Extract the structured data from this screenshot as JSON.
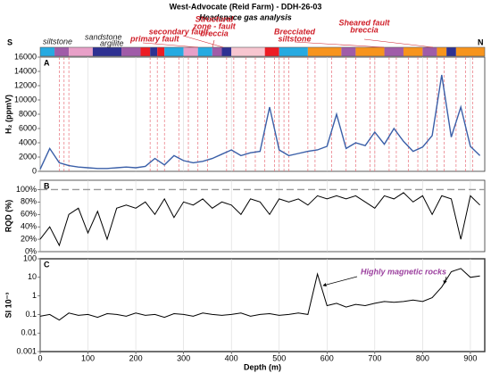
{
  "title": "West-Advocate (Reid Farm) - DDH-26-03",
  "subtitle": "Headspace gas analysis",
  "south_label": "S",
  "north_label": "N",
  "lithology_labels": [
    {
      "lines": [
        "siltstone"
      ],
      "color": "#222222"
    },
    {
      "lines": [
        "sandstone"
      ],
      "color": "#222222"
    },
    {
      "lines": [
        "argilite"
      ],
      "color": "#222222"
    },
    {
      "lines": [
        "primary fault"
      ],
      "color": "#d0202a"
    },
    {
      "lines": [
        "secondary fault"
      ],
      "color": "#d0202a"
    },
    {
      "lines": [
        "Structural",
        "zone - fault",
        "breccia"
      ],
      "color": "#d0202a"
    },
    {
      "lines": [
        "Brecciated",
        "siltstone"
      ],
      "color": "#d0202a"
    },
    {
      "lines": [
        "Sheared fault",
        "breccia"
      ],
      "color": "#d0202a"
    }
  ],
  "strip": [
    {
      "from": 0,
      "to": 30,
      "color": "#27aae1"
    },
    {
      "from": 30,
      "to": 60,
      "color": "#a05ca8"
    },
    {
      "from": 60,
      "to": 110,
      "color": "#e8a0c8"
    },
    {
      "from": 110,
      "to": 170,
      "color": "#2e3192"
    },
    {
      "from": 170,
      "to": 210,
      "color": "#a05ca8"
    },
    {
      "from": 210,
      "to": 230,
      "color": "#ed1c24"
    },
    {
      "from": 230,
      "to": 245,
      "color": "#2e3192"
    },
    {
      "from": 245,
      "to": 260,
      "color": "#ed1c24"
    },
    {
      "from": 260,
      "to": 300,
      "color": "#27aae1"
    },
    {
      "from": 300,
      "to": 330,
      "color": "#e8a0c8"
    },
    {
      "from": 330,
      "to": 360,
      "color": "#27aae1"
    },
    {
      "from": 360,
      "to": 380,
      "color": "#a05ca8"
    },
    {
      "from": 380,
      "to": 400,
      "color": "#2e3192"
    },
    {
      "from": 400,
      "to": 470,
      "color": "#f7c6d0"
    },
    {
      "from": 470,
      "to": 500,
      "color": "#ed1c24"
    },
    {
      "from": 500,
      "to": 560,
      "color": "#27aae1"
    },
    {
      "from": 560,
      "to": 630,
      "color": "#f7941d"
    },
    {
      "from": 630,
      "to": 660,
      "color": "#a05ca8"
    },
    {
      "from": 660,
      "to": 720,
      "color": "#f7941d"
    },
    {
      "from": 720,
      "to": 760,
      "color": "#a05ca8"
    },
    {
      "from": 760,
      "to": 800,
      "color": "#f7941d"
    },
    {
      "from": 800,
      "to": 830,
      "color": "#a05ca8"
    },
    {
      "from": 830,
      "to": 850,
      "color": "#f7941d"
    },
    {
      "from": 850,
      "to": 870,
      "color": "#2e3192"
    },
    {
      "from": 870,
      "to": 930,
      "color": "#f7941d"
    }
  ],
  "chart_data": [
    {
      "type": "line",
      "panel_label": "A",
      "ylabel": "H₂ (ppmV)",
      "x": [
        0,
        20,
        40,
        60,
        80,
        100,
        120,
        140,
        160,
        180,
        200,
        220,
        240,
        260,
        280,
        300,
        320,
        340,
        360,
        380,
        400,
        420,
        440,
        460,
        480,
        500,
        520,
        540,
        560,
        580,
        600,
        620,
        640,
        660,
        680,
        700,
        720,
        740,
        760,
        780,
        800,
        820,
        840,
        860,
        880,
        900,
        920
      ],
      "series": [
        {
          "color": "#3a5fa8",
          "values": [
            300,
            3200,
            1200,
            800,
            600,
            500,
            400,
            400,
            500,
            600,
            500,
            700,
            1800,
            900,
            2200,
            1500,
            1200,
            1400,
            1800,
            2400,
            3000,
            2200,
            2600,
            2800,
            9000,
            3000,
            2200,
            2500,
            2800,
            3000,
            3500,
            8000,
            3200,
            4000,
            3600,
            5500,
            3800,
            6000,
            4200,
            2800,
            3400,
            5000,
            13500,
            4800,
            9000,
            3500,
            2200
          ]
        }
      ],
      "fault_depths": [
        40,
        50,
        60,
        230,
        245,
        260,
        290,
        310,
        330,
        350,
        390,
        405,
        430,
        450,
        470,
        490,
        500,
        510,
        520,
        560,
        575,
        610,
        640,
        660,
        690,
        700,
        730,
        745,
        770,
        790,
        810,
        830,
        845,
        870,
        890,
        905
      ],
      "fault_color": "#e8707a",
      "xlim": [
        0,
        930
      ],
      "xticks": [
        0,
        100,
        200,
        300,
        400,
        500,
        600,
        700,
        800,
        900
      ],
      "ylim": [
        0,
        16000
      ],
      "yticks": [
        0,
        2000,
        4000,
        6000,
        8000,
        10000,
        12000,
        14000,
        16000
      ],
      "grid": true
    },
    {
      "type": "line",
      "panel_label": "B",
      "ylabel": "RQD (%)",
      "x": [
        0,
        20,
        40,
        60,
        80,
        100,
        120,
        140,
        160,
        180,
        200,
        220,
        240,
        260,
        280,
        300,
        320,
        340,
        360,
        380,
        400,
        420,
        440,
        460,
        480,
        500,
        520,
        540,
        560,
        580,
        600,
        620,
        640,
        660,
        680,
        700,
        720,
        740,
        760,
        780,
        800,
        820,
        840,
        860,
        880,
        900,
        920
      ],
      "series": [
        {
          "color": "#000000",
          "values": [
            20,
            40,
            10,
            60,
            70,
            30,
            65,
            20,
            70,
            75,
            70,
            80,
            60,
            85,
            55,
            80,
            75,
            85,
            70,
            80,
            75,
            60,
            85,
            80,
            60,
            85,
            80,
            85,
            75,
            90,
            85,
            90,
            85,
            90,
            80,
            70,
            90,
            85,
            95,
            80,
            90,
            60,
            90,
            85,
            20,
            90,
            75
          ]
        }
      ],
      "reference_line": 100,
      "xlim": [
        0,
        930
      ],
      "xticks": [
        0,
        100,
        200,
        300,
        400,
        500,
        600,
        700,
        800,
        900
      ],
      "ylim": [
        0,
        115
      ],
      "yticks": [
        {
          "value": 0,
          "label": "0%"
        },
        {
          "value": 20,
          "label": "20%"
        },
        {
          "value": 40,
          "label": "40%"
        },
        {
          "value": 60,
          "label": "60%"
        },
        {
          "value": 80,
          "label": "80%"
        },
        {
          "value": 100,
          "label": "100%"
        }
      ],
      "grid": true
    },
    {
      "type": "line",
      "panel_label": "C",
      "ylabel": "SI 10⁻³",
      "xlabel": "Depth (m)",
      "log_y": true,
      "x": [
        0,
        20,
        40,
        60,
        80,
        100,
        120,
        140,
        160,
        180,
        200,
        220,
        240,
        260,
        280,
        300,
        320,
        340,
        360,
        380,
        400,
        420,
        440,
        460,
        480,
        500,
        520,
        540,
        560,
        580,
        600,
        620,
        640,
        660,
        680,
        700,
        720,
        740,
        760,
        780,
        800,
        820,
        840,
        860,
        880,
        900,
        920
      ],
      "series": [
        {
          "color": "#000000",
          "values": [
            0.08,
            0.1,
            0.05,
            0.12,
            0.09,
            0.1,
            0.07,
            0.11,
            0.1,
            0.08,
            0.12,
            0.09,
            0.1,
            0.07,
            0.11,
            0.1,
            0.08,
            0.12,
            0.1,
            0.09,
            0.1,
            0.12,
            0.08,
            0.1,
            0.11,
            0.09,
            0.1,
            0.12,
            0.1,
            15,
            0.3,
            0.4,
            0.25,
            0.35,
            0.3,
            0.4,
            0.5,
            0.45,
            0.5,
            0.6,
            0.5,
            0.8,
            3,
            20,
            30,
            10,
            12
          ]
        }
      ],
      "annotation": "Highly magnetic rocks",
      "annotation_color": "#9b3f9e",
      "xlim": [
        0,
        930
      ],
      "xticks": [
        0,
        100,
        200,
        300,
        400,
        500,
        600,
        700,
        800,
        900
      ],
      "ylim": [
        0.001,
        100
      ],
      "yticks": [
        0.001,
        0.01,
        0.1,
        1,
        10,
        100
      ],
      "grid": true
    }
  ]
}
